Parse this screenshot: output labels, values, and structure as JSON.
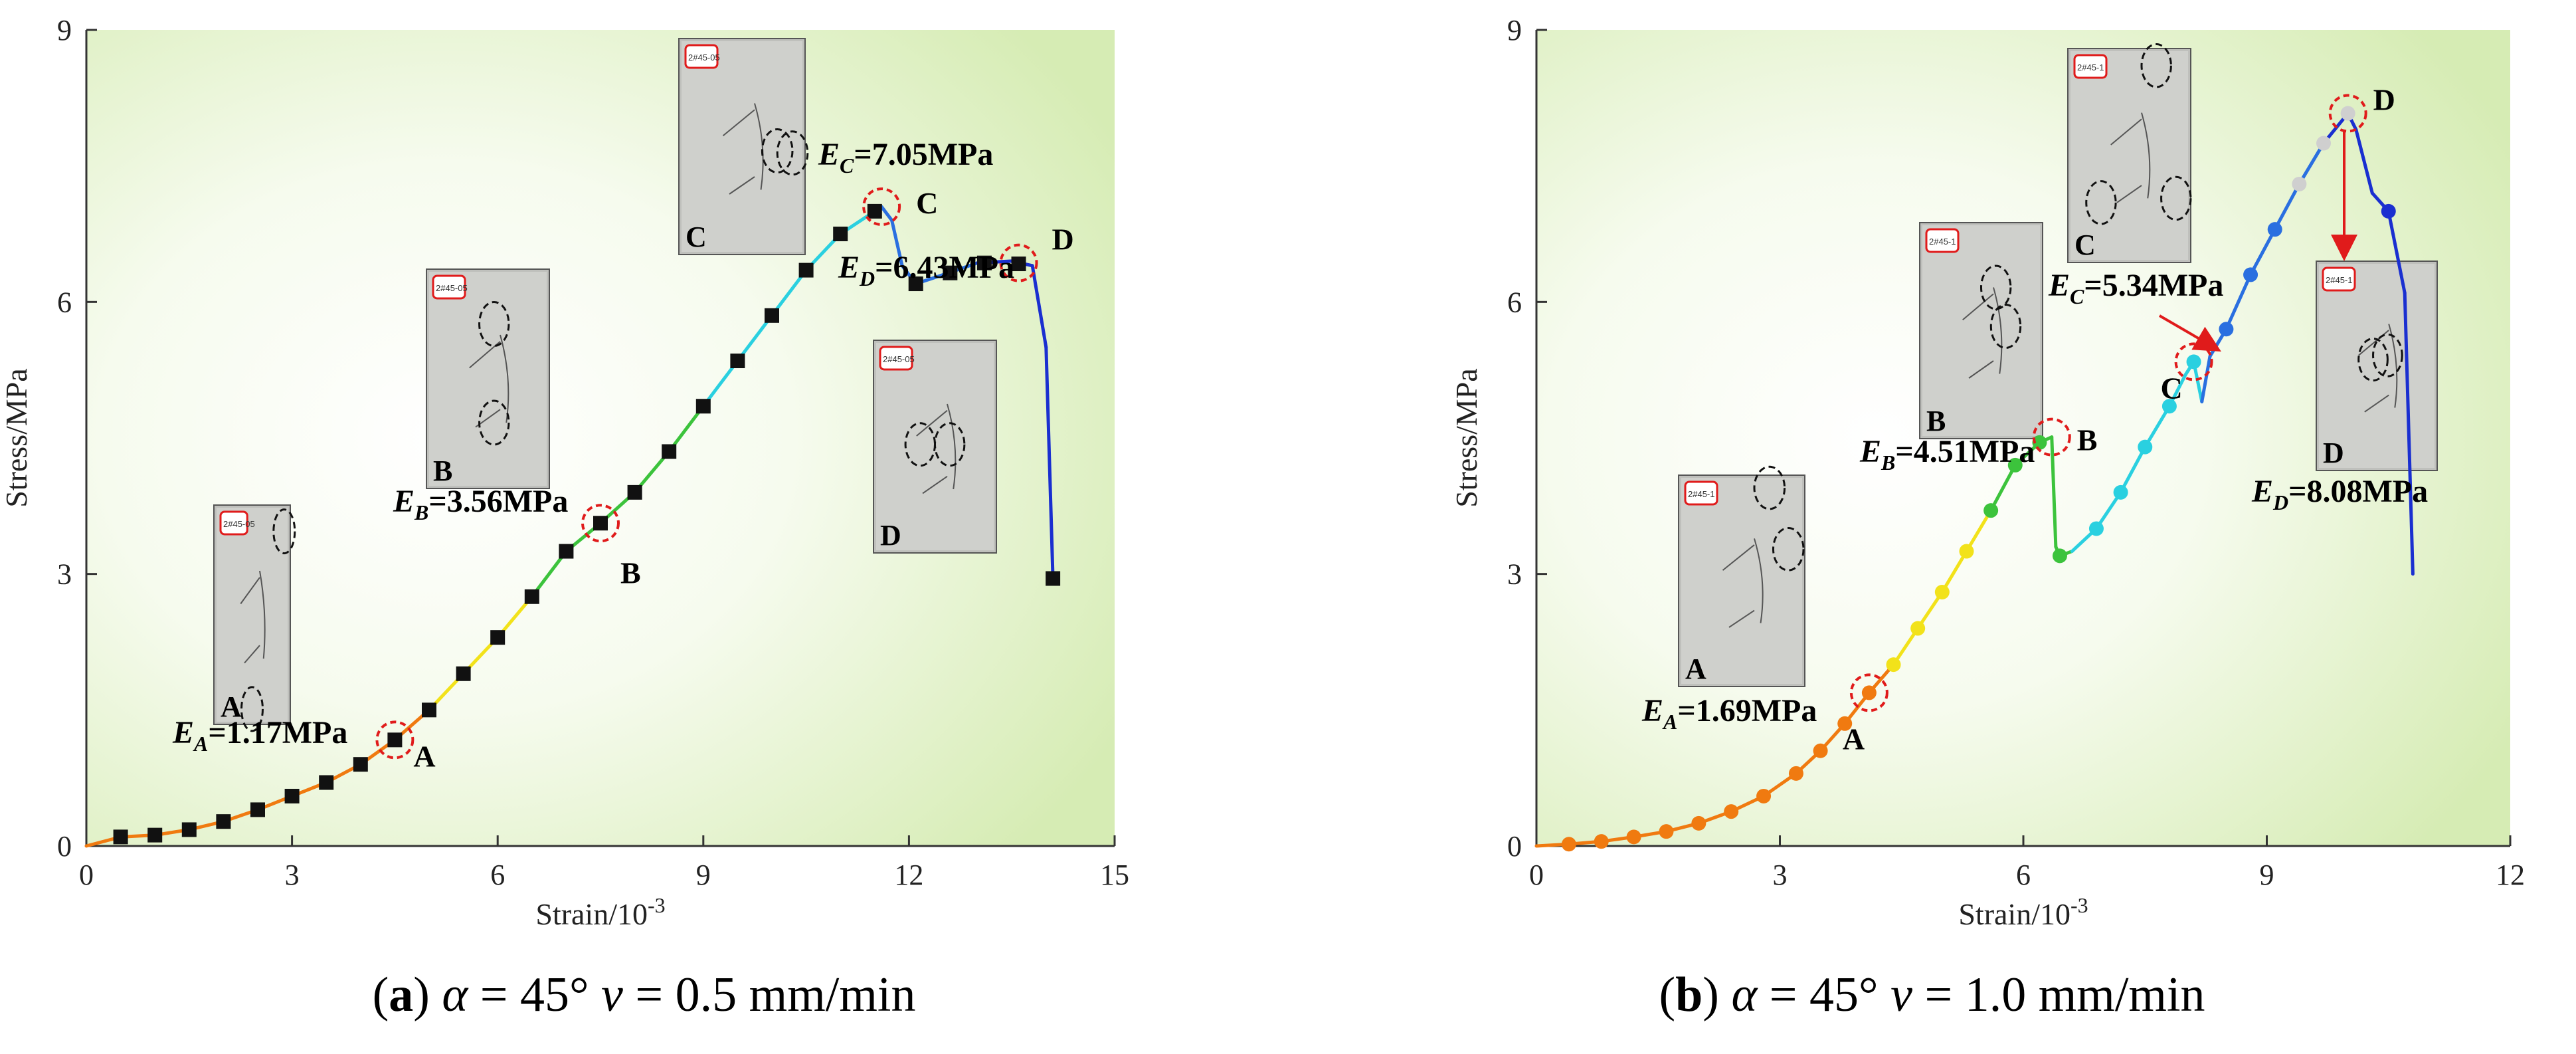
{
  "chart_data": [
    {
      "type": "line",
      "panel_id": "a",
      "caption": {
        "letter": "a",
        "symbol_alpha": "α",
        "alpha_value": " = 45°",
        "symbol_v": "v",
        "v_value": " = 0.5 mm/min"
      },
      "xlabel": "Strain/10",
      "xlabel_exp": "-3",
      "ylabel": "Stress/MPa",
      "xlim": [
        0,
        15
      ],
      "ylim": [
        0,
        9
      ],
      "xticks": [
        "0",
        "3",
        "6",
        "9",
        "12",
        "15"
      ],
      "yticks": [
        "0",
        "3",
        "6",
        "9"
      ],
      "series": [
        {
          "name": "stress-strain",
          "marker": "square",
          "x": [
            0,
            0.5,
            1.0,
            1.5,
            2.0,
            2.5,
            3.0,
            3.5,
            4.0,
            4.5,
            5.0,
            5.5,
            6.0,
            6.5,
            7.0,
            7.5,
            8.0,
            8.5,
            9.0,
            9.5,
            10.0,
            10.5,
            11.0,
            11.5,
            11.6,
            11.75,
            11.9,
            12.1,
            12.5,
            13.0,
            13.5,
            13.8,
            14.0,
            14.1
          ],
          "y": [
            0,
            0.1,
            0.12,
            0.18,
            0.27,
            0.4,
            0.55,
            0.7,
            0.9,
            1.17,
            1.5,
            1.9,
            2.3,
            2.75,
            3.25,
            3.56,
            3.9,
            4.35,
            4.85,
            5.35,
            5.85,
            6.35,
            6.75,
            7.0,
            7.05,
            6.9,
            6.4,
            6.2,
            6.3,
            6.43,
            6.45,
            6.4,
            5.5,
            2.95
          ],
          "markers_x": [
            0.5,
            1.0,
            1.5,
            2.0,
            2.5,
            3.0,
            3.5,
            4.0,
            4.5,
            5.0,
            5.5,
            6.0,
            6.5,
            7.0,
            7.5,
            8.0,
            8.5,
            9.0,
            9.5,
            10.0,
            10.5,
            11.0,
            11.5,
            12.1,
            12.6,
            13.1,
            13.6,
            14.1
          ],
          "markers_y": [
            0.1,
            0.12,
            0.18,
            0.27,
            0.4,
            0.55,
            0.7,
            0.9,
            1.17,
            1.5,
            1.9,
            2.3,
            2.75,
            3.25,
            3.56,
            3.9,
            4.35,
            4.85,
            5.35,
            5.85,
            6.35,
            6.75,
            7.0,
            6.2,
            6.32,
            6.43,
            6.42,
            2.95
          ]
        }
      ],
      "key_points": [
        {
          "label": "A",
          "x": 4.5,
          "y": 1.17,
          "modulus_sym": "E",
          "modulus_sub": "A",
          "modulus_val": "=1.17MPa"
        },
        {
          "label": "B",
          "x": 7.5,
          "y": 3.56,
          "modulus_sym": "E",
          "modulus_sub": "B",
          "modulus_val": "=3.56MPa"
        },
        {
          "label": "C",
          "x": 11.6,
          "y": 7.05,
          "modulus_sym": "E",
          "modulus_sub": "C",
          "modulus_val": "=7.05MPa"
        },
        {
          "label": "D",
          "x": 13.6,
          "y": 6.43,
          "modulus_sym": "E",
          "modulus_sub": "D",
          "modulus_val": "=6.43MPa"
        }
      ],
      "photos": [
        {
          "letter": "A",
          "tag": "2#45-05"
        },
        {
          "letter": "B",
          "tag": "2#45-05"
        },
        {
          "letter": "C",
          "tag": "2#45-05"
        },
        {
          "letter": "D",
          "tag": "2#45-05"
        }
      ]
    },
    {
      "type": "line",
      "panel_id": "b",
      "caption": {
        "letter": "b",
        "symbol_alpha": "α",
        "alpha_value": " = 45°",
        "symbol_v": "v",
        "v_value": " = 1.0 mm/min"
      },
      "xlabel": "Strain/10",
      "xlabel_exp": "-3",
      "ylabel": "Stress/MPa",
      "xlim": [
        0,
        12
      ],
      "ylim": [
        0,
        9
      ],
      "xticks": [
        "0",
        "3",
        "6",
        "9",
        "12"
      ],
      "yticks": [
        "0",
        "3",
        "6",
        "9"
      ],
      "series": [
        {
          "name": "stress-strain",
          "marker": "circle",
          "x": [
            0,
            0.4,
            0.8,
            1.2,
            1.6,
            2.0,
            2.4,
            2.8,
            3.2,
            3.5,
            3.8,
            4.1,
            4.4,
            4.7,
            5.0,
            5.3,
            5.6,
            5.9,
            6.2,
            6.35,
            6.4,
            6.45,
            6.6,
            6.9,
            7.2,
            7.5,
            7.8,
            8.0,
            8.1,
            8.2,
            8.3,
            8.5,
            8.8,
            9.1,
            9.4,
            9.7,
            10.0,
            10.1,
            10.3,
            10.5,
            10.7,
            10.8
          ],
          "y": [
            0,
            0.02,
            0.05,
            0.1,
            0.16,
            0.25,
            0.38,
            0.55,
            0.8,
            1.05,
            1.35,
            1.69,
            2.0,
            2.4,
            2.8,
            3.25,
            3.7,
            4.2,
            4.45,
            4.51,
            3.3,
            3.2,
            3.25,
            3.5,
            3.9,
            4.4,
            4.85,
            5.2,
            5.34,
            4.9,
            5.4,
            5.7,
            6.3,
            6.8,
            7.3,
            7.75,
            8.08,
            7.9,
            7.2,
            7.0,
            6.1,
            3.0
          ],
          "markers_x": [
            0.4,
            0.8,
            1.2,
            1.6,
            2.0,
            2.4,
            2.8,
            3.2,
            3.5,
            3.8,
            4.1,
            4.4,
            4.7,
            5.0,
            5.3,
            5.6,
            5.9,
            6.2,
            6.45,
            6.9,
            7.2,
            7.5,
            7.8,
            8.1,
            8.5,
            8.8,
            9.1,
            9.4,
            9.7,
            10.0,
            10.5
          ],
          "markers_y": [
            0.02,
            0.05,
            0.1,
            0.16,
            0.25,
            0.38,
            0.55,
            0.8,
            1.05,
            1.35,
            1.69,
            2.0,
            2.4,
            2.8,
            3.25,
            3.7,
            4.2,
            4.45,
            3.2,
            3.5,
            3.9,
            4.4,
            4.85,
            5.34,
            5.7,
            6.3,
            6.8,
            7.3,
            7.75,
            8.08,
            7.0
          ]
        }
      ],
      "key_points": [
        {
          "label": "A",
          "x": 4.1,
          "y": 1.69,
          "modulus_sym": "E",
          "modulus_sub": "A",
          "modulus_val": "=1.69MPa"
        },
        {
          "label": "B",
          "x": 6.35,
          "y": 4.51,
          "modulus_sym": "E",
          "modulus_sub": "B",
          "modulus_val": "=4.51MPa"
        },
        {
          "label": "C",
          "x": 8.1,
          "y": 5.34,
          "modulus_sym": "E",
          "modulus_sub": "C",
          "modulus_val": "=5.34MPa"
        },
        {
          "label": "D",
          "x": 10.0,
          "y": 8.08,
          "modulus_sym": "E",
          "modulus_sub": "D",
          "modulus_val": "=8.08MPa"
        }
      ],
      "photos": [
        {
          "letter": "A",
          "tag": "2#45-1"
        },
        {
          "letter": "B",
          "tag": "2#45-1"
        },
        {
          "letter": "C",
          "tag": "2#45-1"
        },
        {
          "letter": "D",
          "tag": "2#45-1"
        }
      ]
    }
  ],
  "colors": {
    "bg_green": "#d6ecb4",
    "axis": "#333333",
    "marker_a": "#111111",
    "highlight_circle": "#e01b1b",
    "arrow": "#e01b1b",
    "photo_tag": "#e01b1b"
  }
}
